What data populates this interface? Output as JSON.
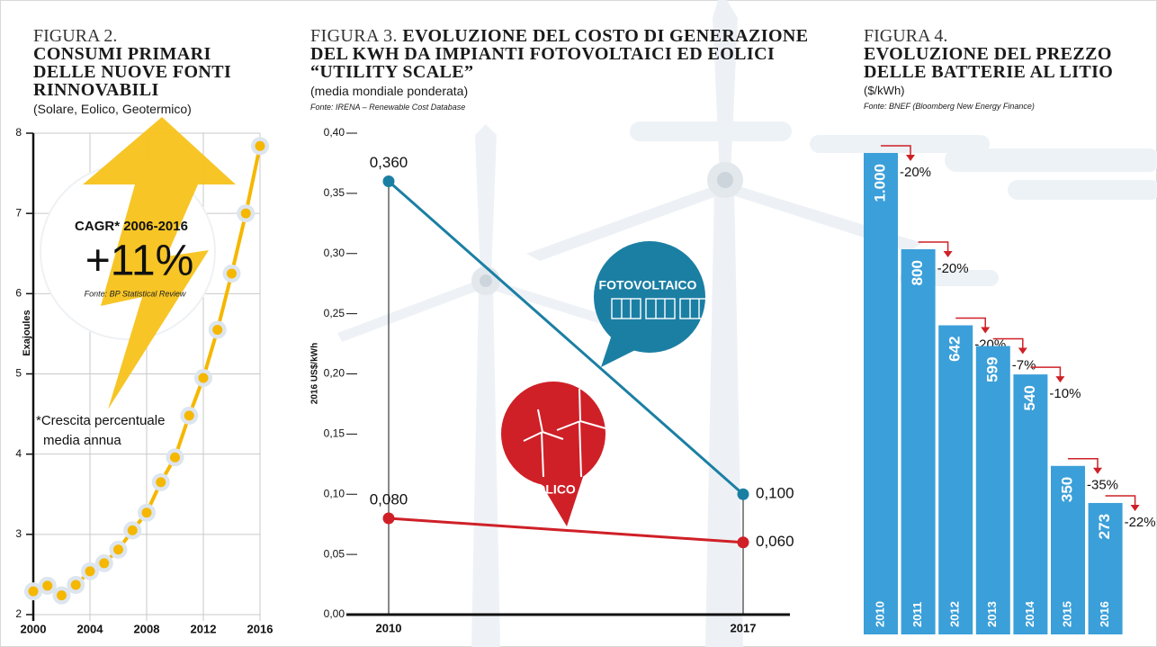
{
  "chart_data": [
    {
      "type": "line",
      "label": "FIGURA 2.",
      "title": "CONSUMI PRIMARI DELLE NUOVE FONTI RINNOVABILI",
      "subtitle": "(Solare, Eolico, Geotermico)",
      "y_label": "Exajoules",
      "x": [
        2000,
        2001,
        2002,
        2003,
        2004,
        2005,
        2006,
        2007,
        2008,
        2009,
        2010,
        2011,
        2012,
        2013,
        2014,
        2015,
        2016
      ],
      "values": [
        2.29,
        2.36,
        2.24,
        2.37,
        2.54,
        2.64,
        2.81,
        3.05,
        3.27,
        3.65,
        3.96,
        4.48,
        4.95,
        5.55,
        6.25,
        7.0,
        7.84
      ],
      "color": "#f5b700",
      "xlim": [
        2000,
        2016
      ],
      "xticks": [
        2000,
        2004,
        2008,
        2012,
        2016
      ],
      "ylim": [
        2,
        8
      ],
      "yticks": [
        2,
        3,
        4,
        5,
        6,
        7,
        8
      ],
      "grid": true,
      "annotation": {
        "heading": "CAGR* 2006-2016",
        "value": "+11%",
        "source": "Fonte: BP Statistical Review",
        "note": "*Crescita percentuale media annua"
      }
    },
    {
      "type": "line",
      "label": "FIGURA 3.",
      "title": "EVOLUZIONE DEL COSTO DI GENERAZIONE DEL KWH DA IMPIANTI FOTOVOLTAICI ED EOLICI “UTILITY SCALE”",
      "subtitle": "(media mondiale ponderata)",
      "source": "Fonte: IRENA – Renewable Cost Database",
      "y_label": "2016 US$/kWh",
      "categories": [
        "2010",
        "2017"
      ],
      "series": [
        {
          "name": "FOTOVOLTAICO",
          "color": "#1b7fa3",
          "values": [
            0.36,
            0.1
          ],
          "value_labels": [
            "0,360",
            "0,100"
          ]
        },
        {
          "name": "EOLICO",
          "color": "#cf2027",
          "values": [
            0.08,
            0.06
          ],
          "value_labels": [
            "0,080",
            "0,060"
          ]
        }
      ],
      "ylim": [
        0,
        0.4
      ],
      "yticks": [
        {
          "value": 0,
          "label": "0,00"
        },
        {
          "value": 0.05,
          "label": "0,05"
        },
        {
          "value": 0.1,
          "label": "0,10"
        },
        {
          "value": 0.15,
          "label": "0,15"
        },
        {
          "value": 0.2,
          "label": "0,20"
        },
        {
          "value": 0.25,
          "label": "0,25"
        },
        {
          "value": 0.3,
          "label": "0,30"
        },
        {
          "value": 0.35,
          "label": "0,35"
        },
        {
          "value": 0.4,
          "label": "0,40"
        }
      ],
      "grid": false
    },
    {
      "type": "bar",
      "label": "FIGURA 4.",
      "title": "EVOLUZIONE DEL PREZZO DELLE BATTERIE AL LITIO",
      "subtitle": "($/kWh)",
      "source": "Fonte: BNEF (Bloomberg New Energy Finance)",
      "categories": [
        "2010",
        "2011",
        "2012",
        "2013",
        "2014",
        "2015",
        "2016"
      ],
      "values": [
        1000,
        800,
        642,
        599,
        540,
        350,
        273
      ],
      "value_labels": [
        "1.000",
        "800",
        "642",
        "599",
        "540",
        "350",
        "273"
      ],
      "color": "#3b9fd9",
      "changes": [
        -20,
        -20,
        -20,
        -7,
        -10,
        -35,
        -22
      ],
      "change_labels": [
        "-20%",
        "-20%",
        "-20%",
        "-7%",
        "-10%",
        "-35%",
        "-22%"
      ],
      "change_color": "#cf2027"
    }
  ]
}
